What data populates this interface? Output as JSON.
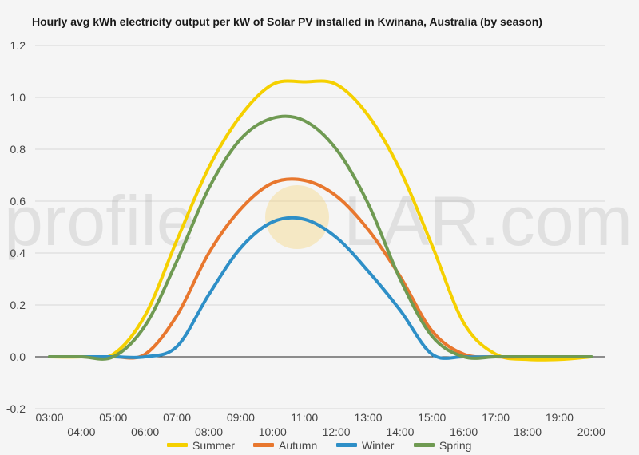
{
  "chart_data": {
    "type": "line",
    "title": "Hourly avg kWh electricity output per kW of Solar PV installed in Kwinana, Australia (by season)",
    "xlabel": "",
    "ylabel": "",
    "ylim": [
      -0.2,
      1.2
    ],
    "yticks": [
      "-0.2",
      "0.0",
      "0.2",
      "0.4",
      "0.6",
      "0.8",
      "1.0",
      "1.2"
    ],
    "x": [
      "03:00",
      "04:00",
      "05:00",
      "06:00",
      "07:00",
      "08:00",
      "09:00",
      "10:00",
      "11:00",
      "12:00",
      "13:00",
      "14:00",
      "15:00",
      "16:00",
      "17:00",
      "18:00",
      "19:00",
      "20:00"
    ],
    "grid": "horizontal",
    "legend_position": "bottom",
    "series": [
      {
        "name": "Summer",
        "color": "#f5d000",
        "values": [
          0,
          0,
          0.01,
          0.16,
          0.45,
          0.73,
          0.93,
          1.05,
          1.06,
          1.05,
          0.93,
          0.72,
          0.43,
          0.13,
          0.01,
          -0.01,
          -0.01,
          0
        ]
      },
      {
        "name": "Autumn",
        "color": "#e8772e",
        "values": [
          0,
          0,
          0,
          0.01,
          0.16,
          0.4,
          0.57,
          0.67,
          0.68,
          0.62,
          0.49,
          0.31,
          0.1,
          0.01,
          0,
          0,
          0,
          0
        ]
      },
      {
        "name": "Winter",
        "color": "#2e8fc7",
        "values": [
          0,
          0,
          0,
          0,
          0.04,
          0.24,
          0.42,
          0.52,
          0.53,
          0.46,
          0.33,
          0.18,
          0.01,
          0,
          0,
          0,
          0,
          0
        ]
      },
      {
        "name": "Spring",
        "color": "#6f9a52",
        "values": [
          0,
          0,
          0,
          0.12,
          0.37,
          0.65,
          0.84,
          0.92,
          0.91,
          0.8,
          0.59,
          0.3,
          0.08,
          0,
          0,
          0,
          0,
          0
        ]
      }
    ]
  },
  "watermark": {
    "left": "profile",
    "right": "LAR.com",
    "sun_color": "#f5d26a"
  }
}
